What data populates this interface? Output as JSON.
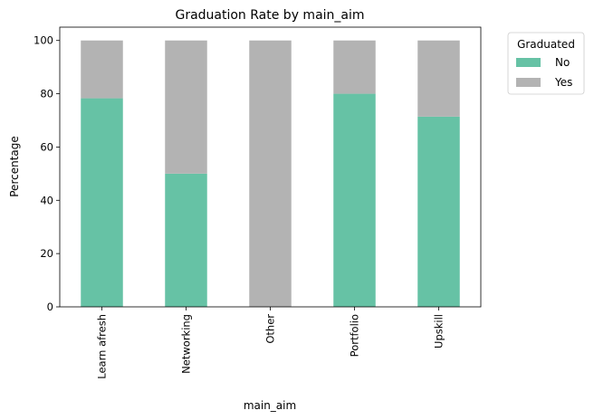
{
  "chart_data": {
    "type": "bar",
    "stacked": true,
    "title": "Graduation Rate by main_aim",
    "xlabel": "main_aim",
    "ylabel": "Percentage",
    "categories": [
      "Learn afresh",
      "Networking",
      "Other",
      "Portfolio",
      "Upskill"
    ],
    "series": [
      {
        "name": "No",
        "values": [
          78.3,
          50.0,
          0.0,
          80.0,
          71.4
        ],
        "color": "#66c2a5"
      },
      {
        "name": "Yes",
        "values": [
          21.7,
          50.0,
          100.0,
          20.0,
          28.6
        ],
        "color": "#b3b3b3"
      }
    ],
    "ylim": [
      0,
      105
    ],
    "yticks": [
      0,
      20,
      40,
      60,
      80,
      100
    ],
    "grid": false,
    "legend": {
      "title": "Graduated",
      "placement": "outside-top-right"
    }
  }
}
